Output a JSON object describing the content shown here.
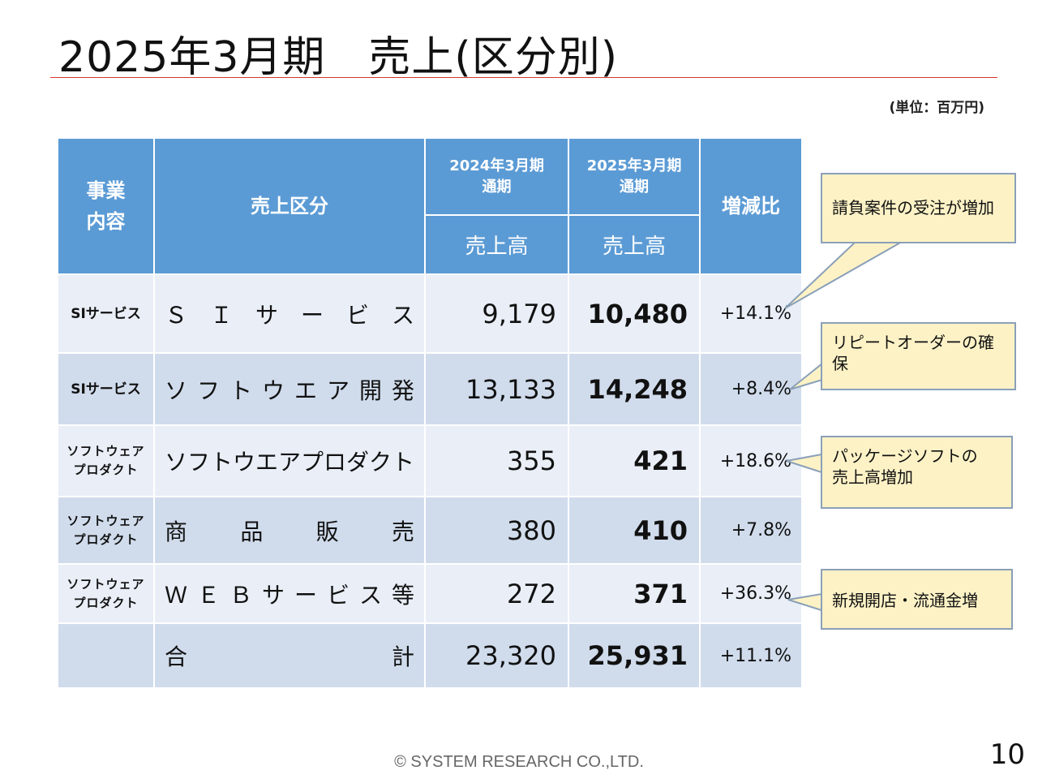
{
  "header": {
    "title": "2025年3月期　売上(区分別)",
    "unit": "(単位：百万円)"
  },
  "table": {
    "headers": {
      "business": "事業\n内容",
      "category": "売上区分",
      "period_prev": "2024年3月期\n通期",
      "period_curr": "2025年3月期\n通期",
      "sales_prev": "売上高",
      "sales_curr": "売上高",
      "change": "増減比"
    },
    "rows": [
      {
        "business": "SIサービス",
        "category": "Ｓ　Ｉ　サ　ー　ビ　ス",
        "prev": "9,179",
        "curr": "10,480",
        "change": "+14.1%"
      },
      {
        "business": "SIサービス",
        "category": "ソ フ ト ウ エ ア 開 発",
        "prev": "13,133",
        "curr": "14,248",
        "change": "+8.4%"
      },
      {
        "business": "ソフトウェア\nプロダクト",
        "category": "ソフトウエアプロダクト",
        "prev": "355",
        "curr": "421",
        "change": "+18.6%"
      },
      {
        "business": "ソフトウェア\nプロダクト",
        "category": "商　品　販　売",
        "prev": "380",
        "curr": "410",
        "change": "+7.8%"
      },
      {
        "business": "ソフトウェア\nプロダクト",
        "category": "Ｗ Ｅ Ｂ サ ー ビ ス 等",
        "prev": "272",
        "curr": "371",
        "change": "+36.3%"
      },
      {
        "business": "",
        "category": "合　　計",
        "prev": "23,320",
        "curr": "25,931",
        "change": "+11.1%"
      }
    ]
  },
  "callouts": [
    {
      "text": "請負案件の受注が増加"
    },
    {
      "text": "リピートオーダーの確保"
    },
    {
      "text": "パッケージソフトの\n売上高増加"
    },
    {
      "text": "新規開店・流通金増"
    }
  ],
  "footer": {
    "copyright": "© SYSTEM RESEARCH CO.,LTD.",
    "page_number": "10"
  },
  "colors": {
    "header_blue": "#5b9bd5",
    "row_light": "#e9eef7",
    "row_dark": "#d0dcec",
    "title_rule": "#d9342b",
    "callout_fill": "#fdf2c6"
  }
}
